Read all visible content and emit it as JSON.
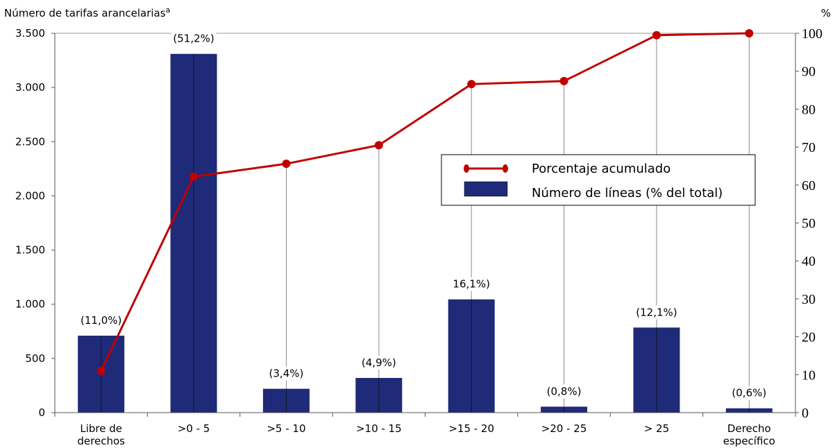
{
  "chart_data": {
    "type": "bar",
    "left_axis_title": "Número de tarifas arancelarias",
    "left_axis_title_superscript": "a",
    "right_axis_title": "%",
    "categories": [
      [
        "Libre de",
        "derechos"
      ],
      [
        ">0 - 5"
      ],
      [
        ">5 - 10"
      ],
      [
        ">10 - 15"
      ],
      [
        ">15 - 20"
      ],
      [
        ">20 - 25"
      ],
      [
        "> 25"
      ],
      [
        "Derecho",
        "específico"
      ]
    ],
    "y_left": {
      "min": 0,
      "max": 3500,
      "ticks": [
        0,
        500,
        1000,
        1500,
        2000,
        2500,
        3000,
        3500
      ],
      "tick_labels": [
        "0",
        "500",
        "1.000",
        "1.500",
        "2.000",
        "2.500",
        "3.000",
        "3.500"
      ]
    },
    "y_right": {
      "min": 0,
      "max": 100,
      "ticks": [
        0,
        10,
        20,
        30,
        40,
        50,
        60,
        70,
        80,
        90,
        100
      ],
      "tick_labels": [
        "0",
        "10",
        "20",
        "30",
        "40",
        "50",
        "60",
        "70",
        "80",
        "90",
        "100"
      ]
    },
    "series": [
      {
        "name": "Número de líneas (% del total)",
        "type": "bar",
        "axis": "left",
        "color": "#1f2a78",
        "values": [
          710,
          3310,
          220,
          320,
          1045,
          55,
          785,
          40
        ],
        "labels": [
          "(11,0%)",
          "(51,2%)",
          "(3,4%)",
          "(4,9%)",
          "16,1%)",
          "(0,8%)",
          "(12,1%)",
          "(0,6%)"
        ]
      },
      {
        "name": "Porcentaje acumulado",
        "type": "line",
        "axis": "right",
        "color": "#c00000",
        "values": [
          11.0,
          62.2,
          65.6,
          70.5,
          86.6,
          87.4,
          99.5,
          100.0
        ]
      }
    ],
    "legend": {
      "position": "right-middle",
      "items": [
        {
          "label": "Porcentaje acumulado",
          "kind": "line"
        },
        {
          "label": "Número de líneas (% del total)",
          "kind": "bar"
        }
      ]
    }
  }
}
